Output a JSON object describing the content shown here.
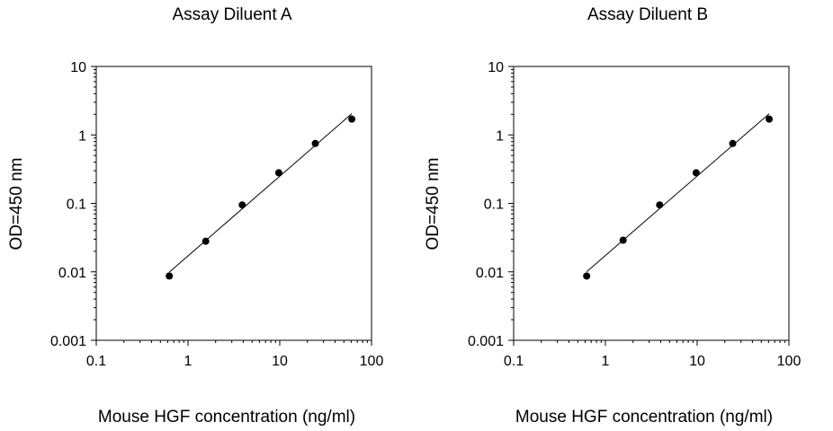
{
  "chart_data": [
    {
      "type": "scatter",
      "title": "Assay Diluent A",
      "xlabel": "Mouse HGF concentration (ng/ml)",
      "ylabel": "OD=450 nm",
      "xscale": "log",
      "yscale": "log",
      "xlim": [
        0.1,
        100
      ],
      "ylim": [
        0.001,
        10
      ],
      "xticks": [
        "0.1",
        "1",
        "10",
        "100"
      ],
      "yticks": [
        "0.001",
        "0.01",
        "0.1",
        "1",
        "10"
      ],
      "grid": false,
      "fit_line": true,
      "series": [
        {
          "x": [
            0.625,
            1.56,
            3.9,
            9.75,
            24.4,
            61
          ],
          "y": [
            0.0087,
            0.028,
            0.095,
            0.28,
            0.75,
            1.7
          ]
        }
      ]
    },
    {
      "type": "scatter",
      "title": "Assay Diluent B",
      "xlabel": "Mouse HGF concentration (ng/ml)",
      "ylabel": "OD=450 nm",
      "xscale": "log",
      "yscale": "log",
      "xlim": [
        0.1,
        100
      ],
      "ylim": [
        0.001,
        10
      ],
      "xticks": [
        "0.1",
        "1",
        "10",
        "100"
      ],
      "yticks": [
        "0.001",
        "0.01",
        "0.1",
        "1",
        "10"
      ],
      "grid": false,
      "fit_line": true,
      "series": [
        {
          "x": [
            0.625,
            1.56,
            3.9,
            9.75,
            24.4,
            61
          ],
          "y": [
            0.0087,
            0.029,
            0.095,
            0.28,
            0.75,
            1.7
          ]
        }
      ]
    }
  ]
}
